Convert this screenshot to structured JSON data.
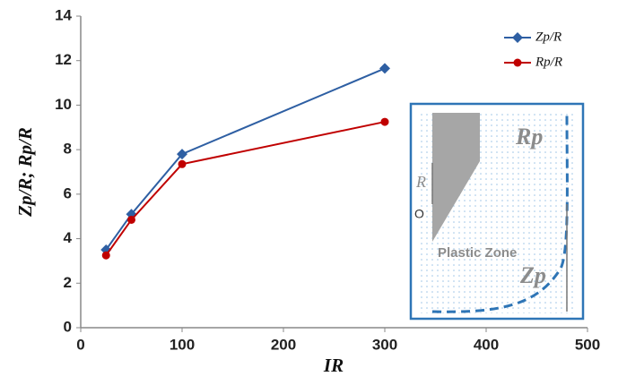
{
  "chart_data": {
    "type": "line",
    "x_label": "IR",
    "y_label": "Zp/R; Rp/R",
    "x": [
      25,
      50,
      100,
      300
    ],
    "series": [
      {
        "name": "Zp/R",
        "color": "#2e5fa3",
        "marker": "diamond",
        "values": [
          3.5,
          5.1,
          7.8,
          11.65
        ]
      },
      {
        "name": "Rp/R",
        "color": "#c00000",
        "marker": "circle",
        "values": [
          3.25,
          4.85,
          7.35,
          9.25
        ]
      }
    ],
    "xlim": [
      0,
      500
    ],
    "xticks": [
      0,
      100,
      200,
      300,
      400,
      500
    ],
    "ylim": [
      0,
      14
    ],
    "yticks": [
      0,
      2,
      4,
      6,
      8,
      10,
      12,
      14
    ],
    "grid": false,
    "legend": "top-right"
  },
  "inset": {
    "rp_label": "Rp",
    "r_label": "R",
    "origin_label": "O",
    "zone_label": "Plastic Zone",
    "zp_label": "Zp"
  }
}
